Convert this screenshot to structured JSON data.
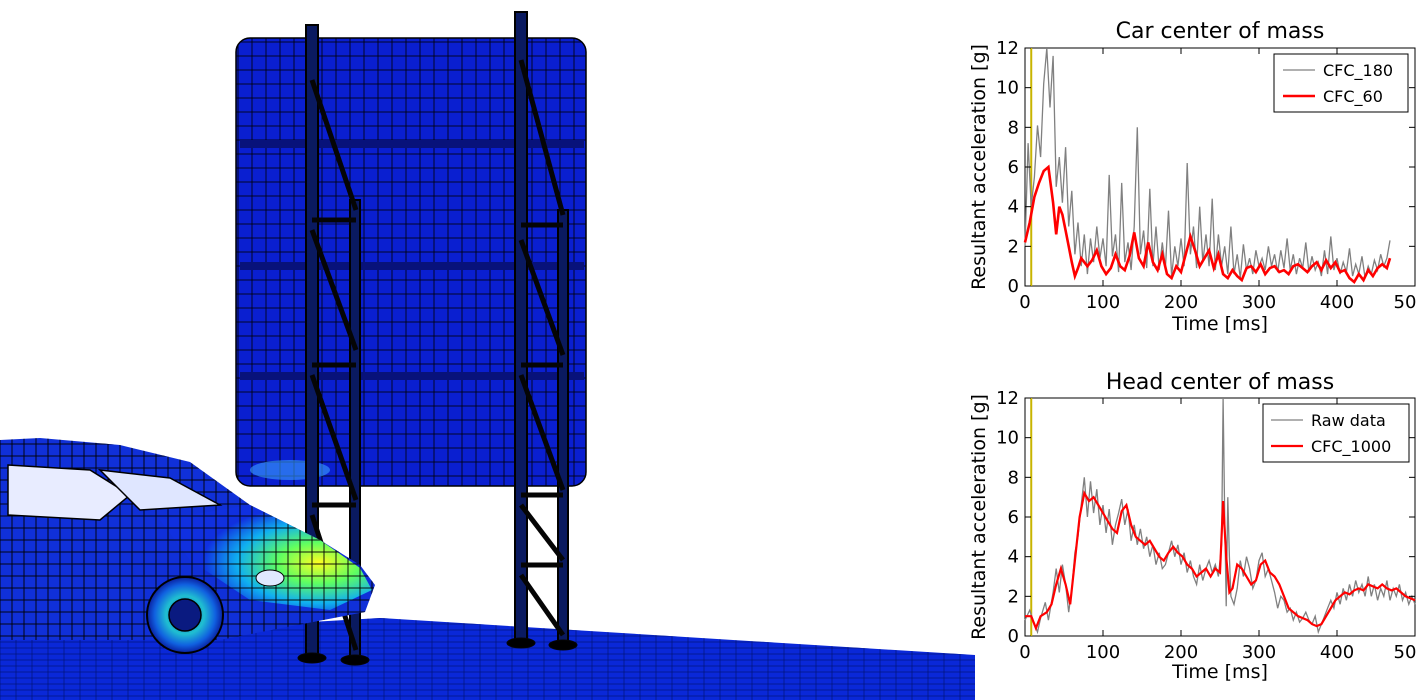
{
  "colors": {
    "raw": "#808080",
    "filtered": "#ff0000",
    "marker": "#c8b400",
    "sim_blue": "#0a1fd0",
    "sim_post": "#050505"
  },
  "simulation_icons": [
    "car-crash-mesh",
    "sign-panel-mesh",
    "sign-support-truss"
  ],
  "chart_data": [
    {
      "type": "line",
      "title": "Car center of mass",
      "xlabel": "Time [ms]",
      "ylabel": "Resultant acceleration [g]",
      "xlim": [
        0,
        500
      ],
      "ylim": [
        0,
        12
      ],
      "xticks": [
        "0",
        "100",
        "200",
        "300",
        "400",
        "50"
      ],
      "yticks": [
        "0",
        "2",
        "4",
        "6",
        "8",
        "10",
        "12"
      ],
      "grid": false,
      "legend": "top-right",
      "marker_line_x": 8,
      "series": [
        {
          "name": "CFC_180",
          "color": "#808080",
          "x": [
            0,
            4,
            8,
            12,
            16,
            20,
            24,
            28,
            32,
            36,
            40,
            44,
            48,
            52,
            56,
            60,
            64,
            68,
            72,
            76,
            80,
            84,
            88,
            92,
            96,
            100,
            104,
            108,
            112,
            116,
            120,
            124,
            128,
            132,
            136,
            140,
            144,
            148,
            152,
            156,
            160,
            164,
            168,
            172,
            176,
            180,
            184,
            188,
            192,
            196,
            200,
            204,
            208,
            212,
            216,
            220,
            224,
            228,
            232,
            236,
            240,
            244,
            248,
            252,
            256,
            260,
            264,
            268,
            272,
            276,
            280,
            284,
            288,
            292,
            296,
            300,
            304,
            308,
            312,
            316,
            320,
            324,
            328,
            332,
            336,
            340,
            344,
            348,
            352,
            356,
            360,
            364,
            368,
            372,
            376,
            380,
            384,
            388,
            392,
            396,
            400,
            404,
            408,
            412,
            416,
            420,
            424,
            428,
            432,
            436,
            440,
            444,
            448,
            452,
            456,
            460,
            464,
            468
          ],
          "y": [
            2.0,
            7.2,
            4.0,
            5.5,
            8.1,
            6.5,
            10.2,
            12.0,
            9.0,
            11.6,
            5.0,
            6.5,
            4.2,
            7.0,
            3.0,
            4.8,
            1.6,
            3.2,
            1.0,
            2.6,
            0.6,
            2.4,
            1.2,
            3.0,
            1.4,
            2.4,
            1.0,
            5.6,
            1.5,
            2.6,
            0.7,
            5.2,
            1.2,
            2.2,
            0.8,
            3.0,
            8.0,
            1.6,
            2.8,
            0.9,
            4.9,
            1.0,
            3.0,
            0.8,
            2.2,
            0.9,
            3.8,
            0.5,
            2.0,
            1.0,
            2.4,
            1.0,
            6.2,
            1.6,
            3.0,
            0.9,
            4.0,
            1.2,
            2.6,
            1.0,
            4.4,
            0.8,
            2.6,
            1.0,
            2.0,
            0.6,
            3.0,
            0.6,
            1.6,
            0.4,
            2.1,
            0.8,
            1.4,
            0.6,
            1.8,
            1.0,
            1.4,
            0.8,
            2.0,
            1.0,
            1.6,
            0.7,
            1.8,
            0.9,
            2.4,
            0.8,
            1.6,
            0.6,
            1.4,
            0.9,
            2.2,
            0.7,
            1.5,
            0.8,
            1.2,
            0.5,
            1.8,
            0.6,
            2.5,
            0.8,
            1.4,
            0.6,
            1.2,
            0.7,
            1.9,
            0.5,
            1.1,
            0.6,
            1.5,
            0.4,
            1.0,
            0.6,
            1.3,
            0.8,
            1.6,
            1.0,
            1.4,
            2.3
          ]
        },
        {
          "name": "CFC_60",
          "color": "#ff0000",
          "x": [
            0,
            6,
            12,
            18,
            24,
            30,
            36,
            40,
            44,
            48,
            52,
            56,
            60,
            64,
            68,
            72,
            76,
            80,
            86,
            92,
            98,
            104,
            110,
            116,
            122,
            128,
            134,
            140,
            146,
            152,
            158,
            164,
            170,
            176,
            182,
            188,
            194,
            200,
            206,
            212,
            218,
            224,
            230,
            236,
            242,
            248,
            254,
            260,
            266,
            272,
            278,
            284,
            290,
            296,
            302,
            308,
            314,
            320,
            326,
            332,
            338,
            344,
            350,
            356,
            362,
            368,
            374,
            380,
            386,
            392,
            398,
            404,
            410,
            416,
            422,
            428,
            434,
            440,
            446,
            452,
            458,
            464,
            468
          ],
          "y": [
            2.2,
            3.2,
            4.5,
            5.2,
            5.8,
            6.0,
            4.2,
            2.6,
            4.0,
            3.6,
            2.8,
            2.0,
            1.2,
            0.5,
            0.9,
            1.4,
            1.2,
            1.0,
            1.3,
            1.8,
            1.0,
            0.6,
            0.9,
            1.6,
            1.0,
            0.8,
            1.5,
            2.7,
            1.4,
            1.0,
            2.2,
            1.2,
            0.8,
            1.6,
            0.6,
            0.4,
            1.0,
            0.7,
            1.6,
            2.5,
            1.8,
            1.0,
            1.4,
            1.8,
            0.9,
            1.6,
            0.6,
            0.4,
            0.8,
            0.5,
            0.3,
            0.9,
            1.0,
            0.7,
            1.1,
            0.6,
            0.9,
            1.0,
            0.7,
            0.8,
            0.6,
            1.0,
            1.1,
            0.9,
            0.7,
            1.0,
            1.2,
            0.8,
            1.3,
            0.9,
            1.2,
            0.7,
            0.8,
            0.4,
            0.2,
            0.6,
            0.3,
            0.8,
            0.5,
            0.9,
            1.1,
            0.9,
            1.4
          ]
        }
      ]
    },
    {
      "type": "line",
      "title": "Head center of mass",
      "xlabel": "Time [ms]",
      "ylabel": "Resultant acceleration [g]",
      "xlim": [
        0,
        500
      ],
      "ylim": [
        0,
        12
      ],
      "xticks": [
        "0",
        "100",
        "200",
        "300",
        "400",
        "50"
      ],
      "yticks": [
        "0",
        "2",
        "4",
        "6",
        "8",
        "10",
        "12"
      ],
      "grid": false,
      "legend": "top-right",
      "marker_line_x": 8,
      "series": [
        {
          "name": "Raw data",
          "color": "#808080",
          "x": [
            0,
            6,
            12,
            16,
            20,
            26,
            30,
            36,
            40,
            44,
            48,
            52,
            56,
            60,
            64,
            68,
            72,
            76,
            80,
            84,
            88,
            92,
            96,
            100,
            104,
            108,
            112,
            116,
            120,
            124,
            128,
            132,
            136,
            140,
            144,
            148,
            152,
            156,
            160,
            164,
            168,
            172,
            176,
            180,
            184,
            188,
            192,
            196,
            200,
            204,
            208,
            212,
            216,
            220,
            224,
            228,
            232,
            236,
            240,
            244,
            248,
            252,
            254,
            256,
            258,
            260,
            262,
            264,
            268,
            272,
            276,
            280,
            284,
            288,
            292,
            296,
            300,
            304,
            308,
            312,
            316,
            320,
            324,
            328,
            332,
            336,
            340,
            344,
            348,
            352,
            356,
            360,
            364,
            368,
            372,
            376,
            380,
            384,
            388,
            392,
            396,
            400,
            404,
            408,
            412,
            416,
            420,
            424,
            428,
            432,
            436,
            440,
            444,
            448,
            452,
            456,
            460,
            464,
            468,
            472,
            476,
            480,
            484,
            488,
            492,
            496,
            500
          ],
          "y": [
            0.8,
            1.3,
            0.6,
            0.2,
            0.9,
            1.7,
            0.8,
            2.2,
            3.4,
            2.2,
            3.6,
            2.6,
            1.2,
            2.4,
            4.2,
            5.0,
            6.6,
            8.0,
            6.0,
            7.8,
            6.2,
            7.4,
            5.6,
            6.6,
            5.2,
            6.4,
            4.6,
            5.6,
            6.2,
            6.9,
            5.6,
            6.4,
            4.8,
            5.6,
            4.6,
            5.4,
            4.4,
            5.0,
            4.0,
            4.6,
            3.6,
            4.2,
            3.4,
            3.6,
            4.2,
            4.8,
            4.0,
            4.6,
            3.6,
            4.2,
            3.2,
            3.8,
            3.0,
            2.6,
            3.6,
            2.8,
            3.4,
            3.8,
            3.2,
            3.6,
            3.0,
            4.6,
            12.0,
            6.0,
            1.5,
            7.0,
            4.0,
            2.0,
            1.6,
            2.4,
            3.8,
            3.0,
            4.0,
            3.4,
            2.4,
            2.8,
            3.8,
            4.2,
            3.0,
            3.4,
            2.8,
            2.2,
            1.4,
            2.0,
            1.8,
            1.2,
            1.4,
            0.8,
            1.2,
            0.7,
            0.9,
            1.2,
            0.8,
            0.6,
            1.0,
            0.2,
            0.6,
            1.0,
            1.4,
            1.8,
            1.4,
            2.2,
            1.6,
            2.4,
            1.8,
            2.6,
            2.0,
            2.8,
            2.2,
            2.6,
            2.0,
            3.0,
            2.0,
            2.6,
            1.8,
            2.4,
            2.0,
            2.8,
            1.8,
            2.4,
            2.0,
            2.6,
            1.8,
            2.2,
            1.6,
            2.0,
            1.6
          ]
        },
        {
          "name": "CFC_1000",
          "color": "#ff0000",
          "x": [
            0,
            8,
            14,
            20,
            28,
            34,
            40,
            46,
            52,
            58,
            64,
            70,
            76,
            82,
            88,
            94,
            100,
            106,
            112,
            118,
            124,
            130,
            136,
            142,
            148,
            154,
            160,
            166,
            172,
            178,
            184,
            190,
            196,
            202,
            208,
            214,
            220,
            226,
            232,
            238,
            244,
            250,
            254,
            258,
            262,
            266,
            272,
            278,
            284,
            290,
            296,
            302,
            308,
            314,
            320,
            326,
            332,
            338,
            344,
            350,
            356,
            362,
            368,
            374,
            380,
            386,
            392,
            398,
            404,
            410,
            416,
            422,
            428,
            434,
            440,
            446,
            452,
            458,
            464,
            470,
            476,
            482,
            488,
            494,
            500
          ],
          "y": [
            1.0,
            1.0,
            0.4,
            1.0,
            1.2,
            1.6,
            2.6,
            3.4,
            2.6,
            1.6,
            3.8,
            6.0,
            7.2,
            6.8,
            7.0,
            6.6,
            6.2,
            5.8,
            5.4,
            5.2,
            6.3,
            6.6,
            5.6,
            5.0,
            4.8,
            4.6,
            4.8,
            4.4,
            4.0,
            3.8,
            4.2,
            4.5,
            4.2,
            4.0,
            3.6,
            3.4,
            3.0,
            3.2,
            3.4,
            3.0,
            3.4,
            3.2,
            6.8,
            4.0,
            2.2,
            2.4,
            3.6,
            3.4,
            3.0,
            2.6,
            2.8,
            3.6,
            3.8,
            3.2,
            3.0,
            2.6,
            2.0,
            1.4,
            1.2,
            1.0,
            0.9,
            0.8,
            0.6,
            0.5,
            0.6,
            1.0,
            1.4,
            1.8,
            2.0,
            2.2,
            2.1,
            2.3,
            2.4,
            2.3,
            2.6,
            2.5,
            2.4,
            2.6,
            2.4,
            2.3,
            2.4,
            2.2,
            2.0,
            1.9,
            1.8
          ]
        }
      ]
    }
  ]
}
